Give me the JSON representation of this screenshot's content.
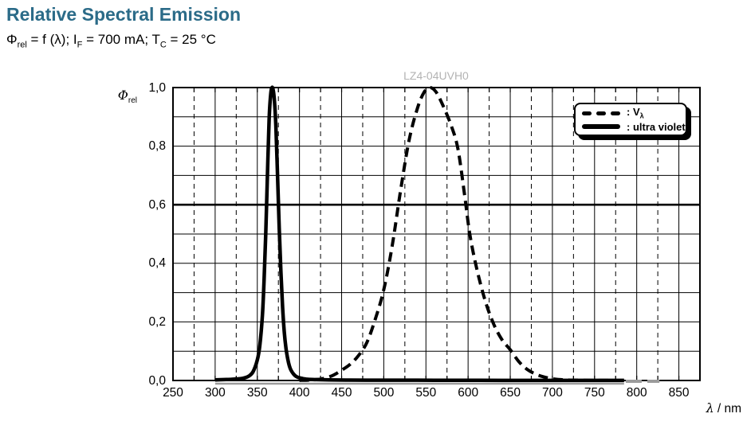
{
  "colors": {
    "title_accent": "#2B6B88",
    "graph_label_gray": "#b3b3b3",
    "curve_color": "#000000",
    "artifact_gray": "#9c9c9c"
  },
  "page": {
    "title": "Relative Spectral Emission"
  },
  "subtitle": {
    "p1": "Φ",
    "s1": "rel",
    "p2": " = f (λ); I",
    "s2": "F",
    "p3": " = 700 mA; T",
    "s3": "C",
    "p4": " = 25 °C"
  },
  "y_axis": {
    "label_phi": "Φ",
    "label_sub": "rel",
    "ticks": [
      {
        "v": 1.0,
        "label": "1,0"
      },
      {
        "v": 0.8,
        "label": "0,8"
      },
      {
        "v": 0.6,
        "label": "0,6"
      },
      {
        "v": 0.4,
        "label": "0,4"
      },
      {
        "v": 0.2,
        "label": "0,2"
      },
      {
        "v": 0.0,
        "label": "0,0"
      }
    ]
  },
  "x_axis": {
    "title_lambda": "λ",
    "title_rest": " / nm",
    "ticks": [
      {
        "nm": 250,
        "label": "250"
      },
      {
        "nm": 300,
        "label": "300"
      },
      {
        "nm": 350,
        "label": "350"
      },
      {
        "nm": 400,
        "label": "400"
      },
      {
        "nm": 450,
        "label": "450"
      },
      {
        "nm": 500,
        "label": "500"
      },
      {
        "nm": 550,
        "label": "550"
      },
      {
        "nm": 600,
        "label": "600"
      },
      {
        "nm": 650,
        "label": "650"
      },
      {
        "nm": 700,
        "label": "700"
      },
      {
        "nm": 750,
        "label": "750"
      },
      {
        "nm": 800,
        "label": "800"
      },
      {
        "nm": 850,
        "label": "850"
      }
    ]
  },
  "legend": {
    "items": [
      {
        "label_pre": ": V",
        "label_sub": "λ",
        "style": "dashed"
      },
      {
        "label": ": ultra violet",
        "style": "solid"
      }
    ]
  },
  "chart_data": {
    "type": "line",
    "title": "LZ4-04UVH0",
    "xlabel": "λ / nm",
    "ylabel": "Φrel",
    "xlim": [
      250,
      875
    ],
    "ylim": [
      0,
      1
    ],
    "x_major_step": 50,
    "x_minor_step": 25,
    "y_step": 0.1,
    "bold_gridline_y": 0.6,
    "grid": true,
    "legend_position": "top-right",
    "series": [
      {
        "name": "Vλ",
        "style": "dashed",
        "width": 4,
        "dash": "12 7",
        "points": [
          [
            400,
            0.0005
          ],
          [
            410,
            0.001
          ],
          [
            420,
            0.003
          ],
          [
            430,
            0.008
          ],
          [
            440,
            0.018
          ],
          [
            450,
            0.035
          ],
          [
            460,
            0.055
          ],
          [
            470,
            0.085
          ],
          [
            480,
            0.13
          ],
          [
            490,
            0.21
          ],
          [
            500,
            0.31
          ],
          [
            510,
            0.46
          ],
          [
            520,
            0.65
          ],
          [
            530,
            0.82
          ],
          [
            540,
            0.93
          ],
          [
            548,
            0.985
          ],
          [
            555,
            1.0
          ],
          [
            562,
            0.985
          ],
          [
            570,
            0.94
          ],
          [
            580,
            0.87
          ],
          [
            588,
            0.79
          ],
          [
            596,
            0.63
          ],
          [
            602,
            0.5
          ],
          [
            610,
            0.385
          ],
          [
            620,
            0.275
          ],
          [
            630,
            0.195
          ],
          [
            640,
            0.14
          ],
          [
            650,
            0.105
          ],
          [
            660,
            0.065
          ],
          [
            670,
            0.038
          ],
          [
            680,
            0.022
          ],
          [
            690,
            0.012
          ],
          [
            700,
            0.006
          ],
          [
            710,
            0.003
          ],
          [
            720,
            0.0015
          ],
          [
            735,
            0.0008
          ],
          [
            750,
            0.0004
          ],
          [
            765,
            0.0002
          ],
          [
            780,
            0.0001
          ]
        ]
      },
      {
        "name": "ultra violet",
        "style": "solid",
        "width": 4.5,
        "dash": null,
        "points": [
          [
            300,
            0.002
          ],
          [
            310,
            0.003
          ],
          [
            320,
            0.004
          ],
          [
            330,
            0.006
          ],
          [
            335,
            0.009
          ],
          [
            340,
            0.015
          ],
          [
            345,
            0.03
          ],
          [
            350,
            0.07
          ],
          [
            353,
            0.12
          ],
          [
            356,
            0.22
          ],
          [
            358,
            0.34
          ],
          [
            360,
            0.5
          ],
          [
            362,
            0.7
          ],
          [
            364,
            0.89
          ],
          [
            366,
            0.98
          ],
          [
            368,
            1.0
          ],
          [
            370,
            0.965
          ],
          [
            372,
            0.87
          ],
          [
            374,
            0.7
          ],
          [
            376,
            0.52
          ],
          [
            378,
            0.37
          ],
          [
            380,
            0.25
          ],
          [
            382,
            0.165
          ],
          [
            384,
            0.11
          ],
          [
            386,
            0.075
          ],
          [
            388,
            0.05
          ],
          [
            390,
            0.035
          ],
          [
            393,
            0.022
          ],
          [
            396,
            0.014
          ],
          [
            400,
            0.009
          ],
          [
            405,
            0.006
          ],
          [
            410,
            0.004
          ],
          [
            420,
            0.003
          ],
          [
            435,
            0.002
          ],
          [
            455,
            0.0015
          ],
          [
            480,
            0.001
          ],
          [
            520,
            0.001
          ],
          [
            560,
            0.0008
          ],
          [
            600,
            0.0006
          ],
          [
            640,
            0.0005
          ],
          [
            680,
            0.0004
          ],
          [
            720,
            0.0003
          ],
          [
            750,
            0.0002
          ],
          [
            785,
            0.0002
          ]
        ]
      }
    ],
    "artifacts": {
      "gray_zero_underline_nm": [
        300,
        785
      ],
      "gray_vlambda_zero_tail_nm": [
        787,
        827
      ]
    }
  }
}
